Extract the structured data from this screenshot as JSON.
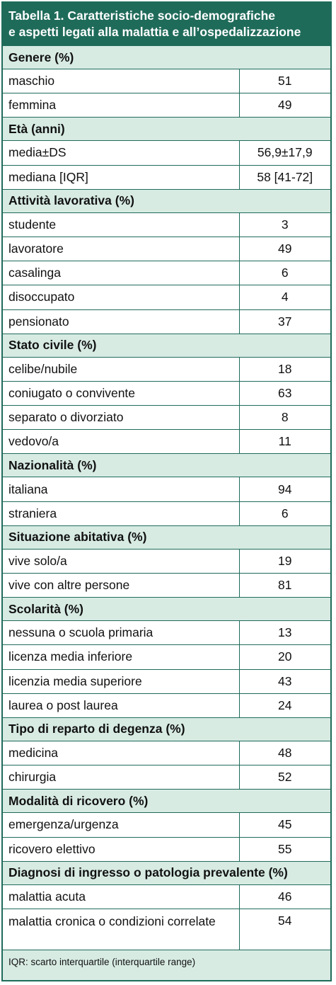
{
  "title_line1": "Tabella 1. Caratteristiche socio-demografiche",
  "title_line2": "e aspetti legati alla malattia e all’ospedalizzazione",
  "sections": [
    {
      "title": "Genere (%)",
      "rows": [
        [
          "maschio",
          "51"
        ],
        [
          "femmina",
          "49"
        ]
      ]
    },
    {
      "title": "Età (anni)",
      "rows": [
        [
          "media±DS",
          "56,9±17,9"
        ],
        [
          "mediana [IQR]",
          "58 [41-72]"
        ]
      ]
    },
    {
      "title": "Attività lavorativa (%)",
      "rows": [
        [
          "studente",
          "3"
        ],
        [
          "lavoratore",
          "49"
        ],
        [
          "casalinga",
          "6"
        ],
        [
          "disoccupato",
          "4"
        ],
        [
          "pensionato",
          "37"
        ]
      ]
    },
    {
      "title": "Stato civile (%)",
      "rows": [
        [
          "celibe/nubile",
          "18"
        ],
        [
          "coniugato o convivente",
          "63"
        ],
        [
          "separato o divorziato",
          "8"
        ],
        [
          "vedovo/a",
          "11"
        ]
      ]
    },
    {
      "title": "Nazionalità (%)",
      "rows": [
        [
          "italiana",
          "94"
        ],
        [
          "straniera",
          "6"
        ]
      ]
    },
    {
      "title": "Situazione abitativa (%)",
      "rows": [
        [
          "vive solo/a",
          "19"
        ],
        [
          "vive con altre persone",
          "81"
        ]
      ]
    },
    {
      "title": "Scolarità (%)",
      "rows": [
        [
          "nessuna o scuola primaria",
          "13"
        ],
        [
          "licenza media inferiore",
          "20"
        ],
        [
          "licenzia media superiore",
          "43"
        ],
        [
          "laurea o post laurea",
          "24"
        ]
      ]
    },
    {
      "title": "Tipo di reparto di degenza (%)",
      "rows": [
        [
          "medicina",
          "48"
        ],
        [
          "chirurgia",
          "52"
        ]
      ]
    },
    {
      "title": "Modalità di ricovero (%)",
      "rows": [
        [
          "emergenza/urgenza",
          "45"
        ],
        [
          "ricovero elettivo",
          "55"
        ]
      ]
    },
    {
      "title": "Diagnosi di ingresso o patologia prevalente (%)",
      "rows": [
        [
          "malattia acuta",
          "46"
        ],
        [
          "malattia cronica o condizioni correlate",
          "54"
        ]
      ]
    }
  ],
  "footnote": "IQR: scarto interquartile (interquartile range)"
}
